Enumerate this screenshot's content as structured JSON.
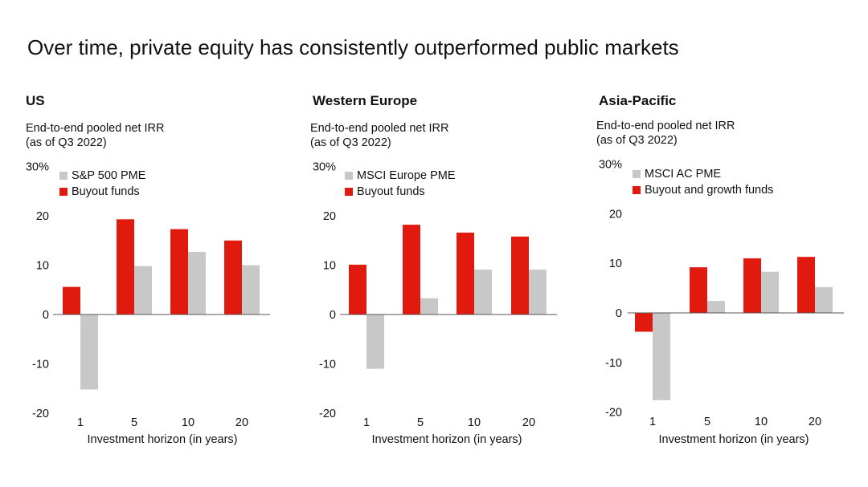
{
  "title": "Over time, private equity has consistently outperformed public markets",
  "colors": {
    "pme": "#c8c8c8",
    "buyout": "#e01a0f",
    "axis": "#555555"
  },
  "chart_data": [
    {
      "type": "bar",
      "title": "US",
      "subtitle_line1": "End-to-end pooled net IRR",
      "subtitle_line2": "(as of Q3 2022)",
      "categories": [
        "1",
        "5",
        "10",
        "20"
      ],
      "xlabel": "Investment horizon (in years)",
      "ylim": [
        -20,
        30
      ],
      "yticks": [
        "30%",
        "20",
        "10",
        "0",
        "-10",
        "-20"
      ],
      "series": [
        {
          "name": "S&P 500 PME",
          "color": "#c8c8c8",
          "values": [
            -15.2,
            9.8,
            12.7,
            10.0
          ]
        },
        {
          "name": "Buyout funds",
          "color": "#e01a0f",
          "values": [
            5.6,
            19.3,
            17.3,
            15.0
          ]
        }
      ]
    },
    {
      "type": "bar",
      "title": "Western Europe",
      "subtitle_line1": "End-to-end pooled net IRR",
      "subtitle_line2": "(as of Q3 2022)",
      "categories": [
        "1",
        "5",
        "10",
        "20"
      ],
      "xlabel": "Investment horizon (in years)",
      "ylim": [
        -20,
        30
      ],
      "yticks": [
        "30%",
        "20",
        "10",
        "0",
        "-10",
        "-20"
      ],
      "series": [
        {
          "name": "MSCI Europe PME",
          "color": "#c8c8c8",
          "values": [
            -11.0,
            3.3,
            9.1,
            9.1
          ]
        },
        {
          "name": "Buyout funds",
          "color": "#e01a0f",
          "values": [
            10.1,
            18.2,
            16.6,
            15.8
          ]
        }
      ]
    },
    {
      "type": "bar",
      "title": "Asia-Pacific",
      "subtitle_line1": "End-to-end pooled net IRR",
      "subtitle_line2": "(as of Q3 2022)",
      "categories": [
        "1",
        "5",
        "10",
        "20"
      ],
      "xlabel": "Investment horizon (in years)",
      "ylim": [
        -20,
        30
      ],
      "yticks": [
        "30%",
        "20",
        "10",
        "0",
        "-10",
        "-20"
      ],
      "series": [
        {
          "name": "MSCI AC PME",
          "color": "#c8c8c8",
          "values": [
            -17.6,
            2.4,
            8.3,
            5.2
          ]
        },
        {
          "name": "Buyout and growth funds",
          "color": "#e01a0f",
          "values": [
            -3.8,
            9.2,
            11.0,
            11.3
          ]
        }
      ]
    }
  ]
}
